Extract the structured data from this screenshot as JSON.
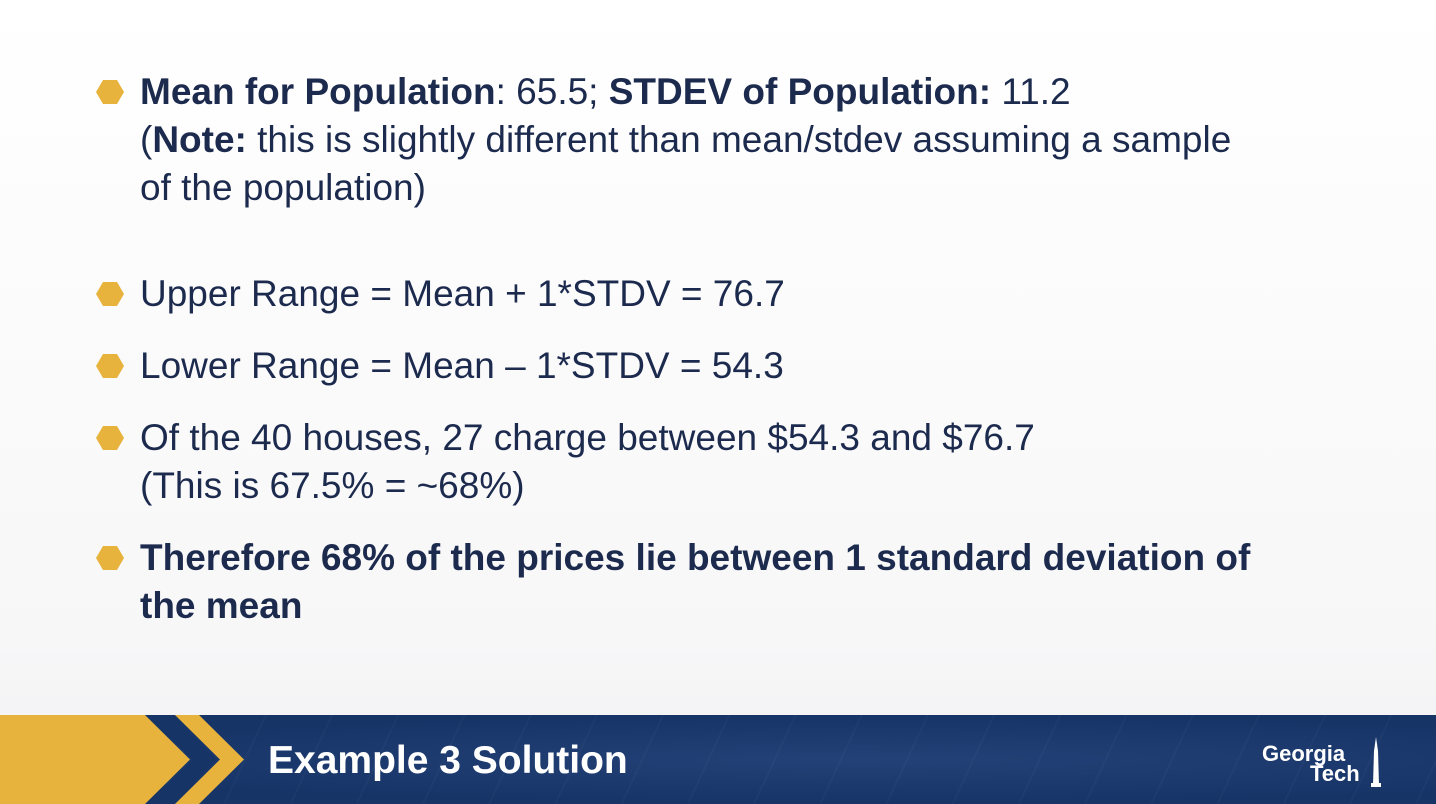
{
  "bullets": [
    {
      "lines": [
        {
          "bold1": "Mean for Population",
          "text1": ": 65.5; ",
          "bold2": "STDEV of Population:",
          "text2": " 11.2"
        },
        {
          "open": "(",
          "bold": "Note:",
          "rest": " this is slightly different than mean/stdev assuming a sample"
        },
        {
          "text": "of the population)"
        }
      ]
    },
    {
      "text": "Upper Range = Mean + 1*STDV = 76.7"
    },
    {
      "text": "Lower Range = Mean – 1*STDV = 54.3"
    },
    {
      "line1": "Of the 40 houses, 27 charge between $54.3 and $76.7",
      "line2": "(This is 67.5% = ~68%)"
    },
    {
      "line1": "Therefore 68% of the prices lie between 1 standard deviation of",
      "line2": "the mean"
    }
  ],
  "footer": {
    "title": "Example 3 Solution",
    "logo_line1": "Georgia",
    "logo_line2": "Tech"
  },
  "colors": {
    "bullet": "#e8b33d",
    "text": "#1c2a4e",
    "footer_bg": "#173467",
    "accent": "#e8b33d"
  },
  "icons": {
    "bullet": "hexagon-bullet-icon",
    "chevron": "chevron-right-icon",
    "logo_tower": "tower-icon"
  }
}
